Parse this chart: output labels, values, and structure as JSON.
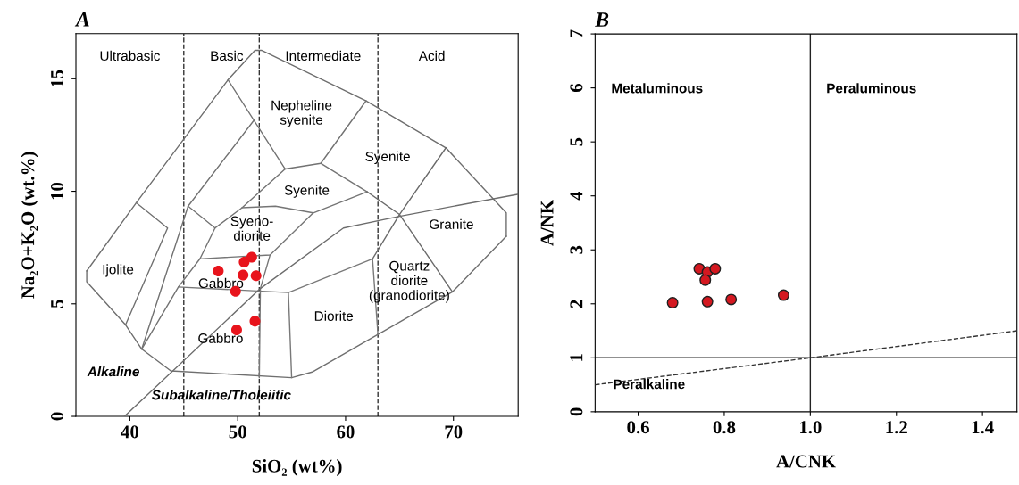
{
  "chart_data": [
    {
      "type": "scatter",
      "title": "A",
      "xlabel": "SiO₂ (wt%)",
      "ylabel": "Na₂O+K₂O (wt.%)",
      "xlim": [
        35,
        76
      ],
      "ylim": [
        0,
        17
      ],
      "xticks": [
        40,
        50,
        60,
        70
      ],
      "yticks": [
        0,
        5,
        10,
        15
      ],
      "grid": false,
      "series": [
        {
          "color": "#e8141c",
          "marker": "circle",
          "x": [
            48.2,
            50.6,
            51.3,
            50.5,
            51.7,
            49.8,
            51.6,
            49.9
          ],
          "values": [
            6.46,
            6.85,
            7.07,
            6.28,
            6.25,
            5.56,
            4.23,
            3.84
          ]
        },
        {
          "type": "line",
          "color": "#6e6e6e",
          "x": [
            36.0,
            40.6,
            49.1,
            51.6,
            52.2,
            61.9,
            69.3,
            74.9,
            74.9
          ],
          "values": [
            6.46,
            9.49,
            14.95,
            16.26,
            16.26,
            14.02,
            11.93,
            9.04,
            8.0
          ]
        },
        {
          "type": "line",
          "color": "#6f6f6f",
          "x": [
            74.9,
            69.9,
            56.9,
            55.0,
            43.8,
            41.1,
            39.6,
            36.0,
            36.0
          ],
          "values": [
            8.0,
            5.53,
            1.97,
            1.72,
            2.02,
            2.99,
            4.07,
            5.98,
            6.46
          ]
        },
        {
          "type": "line",
          "color": "#707070",
          "x": [
            40.6,
            43.5,
            39.6
          ],
          "values": [
            9.49,
            8.37,
            4.07
          ]
        },
        {
          "type": "line",
          "color": "#717171",
          "x": [
            51.5,
            45.4,
            41.1
          ],
          "values": [
            13.15,
            9.34,
            2.99
          ]
        },
        {
          "type": "line",
          "color": "#727272",
          "x": [
            49.1,
            54.4,
            57.7,
            61.9
          ],
          "values": [
            14.95,
            10.99,
            11.24,
            14.02
          ]
        },
        {
          "type": "line",
          "color": "#737373",
          "x": [
            45.4,
            47.9,
            46.5,
            44.5,
            41.1
          ],
          "values": [
            9.34,
            8.37,
            7.0,
            5.75,
            2.99
          ]
        },
        {
          "type": "line",
          "color": "#747474",
          "x": [
            54.4,
            50.4,
            47.9
          ],
          "values": [
            10.99,
            9.27,
            8.37
          ]
        },
        {
          "type": "line",
          "color": "#757575",
          "x": [
            50.4,
            53.5,
            57.0,
            62.0,
            57.7
          ],
          "values": [
            9.27,
            9.34,
            9.04,
            9.98,
            11.24
          ]
        },
        {
          "type": "line",
          "color": "#767676",
          "x": [
            57.0,
            53.0,
            46.5
          ],
          "values": [
            9.04,
            7.17,
            7.0
          ]
        },
        {
          "type": "line",
          "color": "#777777",
          "x": [
            53.0,
            52.1,
            52.0
          ],
          "values": [
            7.17,
            5.68,
            1.72
          ]
        },
        {
          "type": "line",
          "color": "#787878",
          "x": [
            44.5,
            54.7,
            55.0
          ],
          "values": [
            5.75,
            5.5,
            1.72
          ]
        },
        {
          "type": "line",
          "color": "#797979",
          "x": [
            54.7,
            62.5,
            63.0
          ],
          "values": [
            5.5,
            7.0,
            3.63
          ]
        },
        {
          "type": "line",
          "color": "#6a6a6a",
          "x": [
            62.5,
            65.0,
            69.3
          ],
          "values": [
            7.0,
            8.97,
            11.93
          ]
        },
        {
          "type": "line",
          "color": "#6b6b6b",
          "x": [
            62.0,
            65.0,
            69.9
          ],
          "values": [
            9.98,
            8.97,
            5.53
          ]
        },
        {
          "type": "line",
          "color": "#6c6c6c",
          "x": [
            39.5,
            52.1,
            59.8,
            65.0,
            76.0
          ],
          "values": [
            0,
            5.68,
            8.37,
            8.89,
            9.87
          ]
        }
      ],
      "ref_lines": [
        {
          "axis": "x",
          "value": 45,
          "color": "#333333",
          "line_style": "dashed"
        },
        {
          "axis": "x",
          "value": 52,
          "color": "#333333",
          "line_style": "dashed"
        },
        {
          "axis": "x",
          "value": 63,
          "color": "#333333",
          "line_style": "dashed"
        }
      ],
      "annotations": [
        "Ultrabasic",
        "Basic",
        "Intermediate",
        "Acid",
        "Nepheline\nsyenite",
        "Syenite",
        "Syenite",
        "Syeno-\ndiorite",
        "Granite",
        "Ijolite",
        "Gabbro",
        "Quartz\ndiorite\n(granodiorite)",
        "Diorite",
        "Gabbro",
        "Alkaline",
        "Subalkaline/Tholeiitic"
      ]
    },
    {
      "type": "scatter",
      "title": "B",
      "xlabel": "A/CNK",
      "ylabel": "A/NK",
      "xlim": [
        0.5,
        1.48
      ],
      "ylim": [
        0,
        7
      ],
      "xticks": [
        {
          "value": 0.6,
          "label": "0.6"
        },
        {
          "value": 0.8,
          "label": "0.8"
        },
        {
          "value": 1.0,
          "label": "1.0"
        },
        {
          "value": 1.2,
          "label": "1.2"
        },
        {
          "value": 1.4,
          "label": "1.4"
        }
      ],
      "yticks": [
        0,
        1,
        2,
        3,
        4,
        5,
        6,
        7
      ],
      "grid": false,
      "series": [
        {
          "color": "#d41820",
          "marker": "circle",
          "x": [
            0.68,
            0.742,
            0.761,
            0.779,
            0.756,
            0.761,
            0.816,
            0.938
          ],
          "values": [
            2.02,
            2.65,
            2.59,
            2.65,
            2.44,
            2.04,
            2.08,
            2.16
          ]
        },
        {
          "type": "line",
          "color": "#333333",
          "line_style": "dashed",
          "x": [
            0.5,
            1.0,
            1.48
          ],
          "values": [
            0.5,
            1.0,
            1.5
          ]
        }
      ],
      "ref_lines": [
        {
          "axis": "x",
          "value": 1.0,
          "color": "#222222",
          "line_style": "solid"
        },
        {
          "axis": "y",
          "value": 1,
          "color": "#222222",
          "line_style": "solid"
        }
      ],
      "annotations": [
        "Metaluminous",
        "Peraluminous",
        "Peralkaline"
      ]
    }
  ]
}
